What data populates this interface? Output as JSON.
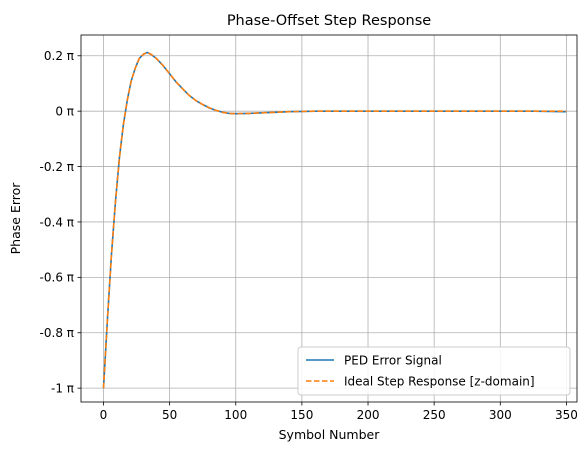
{
  "chart_data": {
    "type": "line",
    "title": "Phase-Offset Step Response",
    "xlabel": "Symbol Number",
    "ylabel": "Phase Error",
    "xlim": [
      -17,
      358
    ],
    "ylim": [
      -1.05,
      0.275
    ],
    "x_ticks": [
      0,
      50,
      100,
      150,
      200,
      250,
      300,
      350
    ],
    "x_tick_labels": [
      "0",
      "50",
      "100",
      "150",
      "200",
      "250",
      "300",
      "350"
    ],
    "y_ticks": [
      -1.0,
      -0.8,
      -0.6,
      -0.4,
      -0.2,
      0.0,
      0.2
    ],
    "y_tick_labels": [
      "-1 π",
      "-0.8 π",
      "-0.6 π",
      "-0.4 π",
      "-0.2 π",
      "0 π",
      "0.2 π"
    ],
    "grid": true,
    "legend_position": "lower-right",
    "colors": {
      "ped": "#1f77b4",
      "ideal": "#ff7f0e"
    },
    "series": [
      {
        "name": "PED Error Signal",
        "style": "solid",
        "x": [
          0,
          3,
          6,
          9,
          12,
          15,
          18,
          21,
          24,
          27,
          30,
          33,
          36,
          40,
          45,
          50,
          55,
          60,
          65,
          70,
          75,
          80,
          85,
          90,
          95,
          100,
          110,
          120,
          130,
          140,
          150,
          160,
          170,
          180,
          190,
          200,
          225,
          250,
          275,
          300,
          325,
          350
        ],
        "y": [
          -1.0,
          -0.75,
          -0.52,
          -0.33,
          -0.17,
          -0.05,
          0.04,
          0.11,
          0.155,
          0.19,
          0.205,
          0.212,
          0.205,
          0.19,
          0.165,
          0.135,
          0.105,
          0.08,
          0.056,
          0.038,
          0.024,
          0.012,
          0.003,
          -0.004,
          -0.008,
          -0.009,
          -0.008,
          -0.006,
          -0.004,
          -0.002,
          -0.001,
          0.0,
          0.0,
          0.0,
          0.0,
          0.0,
          0.0,
          0.0,
          0.0,
          0.0,
          0.0,
          -0.002
        ]
      },
      {
        "name": "Ideal Step Response [z-domain]",
        "style": "dashed",
        "x": [
          0,
          3,
          6,
          9,
          12,
          15,
          18,
          21,
          24,
          27,
          30,
          33,
          36,
          40,
          45,
          50,
          55,
          60,
          65,
          70,
          75,
          80,
          85,
          90,
          95,
          100,
          110,
          120,
          130,
          140,
          150,
          160,
          170,
          180,
          190,
          200,
          225,
          250,
          275,
          300,
          325,
          350
        ],
        "y": [
          -1.0,
          -0.75,
          -0.52,
          -0.33,
          -0.17,
          -0.05,
          0.04,
          0.11,
          0.155,
          0.19,
          0.205,
          0.212,
          0.205,
          0.19,
          0.165,
          0.135,
          0.105,
          0.08,
          0.056,
          0.038,
          0.024,
          0.012,
          0.003,
          -0.004,
          -0.008,
          -0.009,
          -0.008,
          -0.006,
          -0.004,
          -0.002,
          -0.001,
          0.0,
          0.0,
          0.0,
          0.0,
          0.0,
          0.0,
          0.0,
          0.0,
          0.0,
          0.0,
          0.0
        ]
      }
    ]
  }
}
